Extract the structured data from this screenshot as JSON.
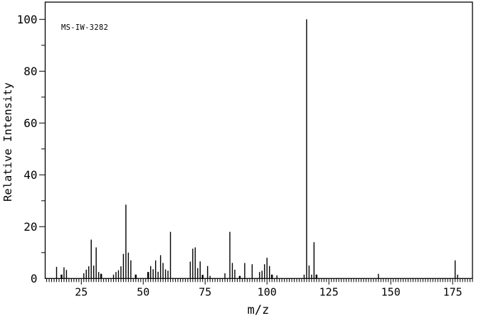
{
  "chart_data": {
    "type": "bar",
    "subtype": "mass-spectrum",
    "annotation": "MS-IW-3282",
    "xlabel": "m/z",
    "ylabel": "Relative Intensity",
    "xlim": [
      10.4,
      183
    ],
    "ylim": [
      0,
      100
    ],
    "x_major_ticks": [
      25,
      50,
      75,
      100,
      125,
      150,
      175
    ],
    "x_minor_step": 1,
    "y_major_ticks": [
      0,
      20,
      40,
      60,
      80,
      100
    ],
    "y_minor_step": 10,
    "grid": false,
    "legend": "none",
    "colors": {
      "line": "#000000",
      "background": "#ffffff"
    },
    "peaks": [
      [
        15,
        4.5
      ],
      [
        17,
        1.5,
        2.5
      ],
      [
        18,
        4.3
      ],
      [
        19,
        3.3
      ],
      [
        26,
        2
      ],
      [
        27,
        3.4
      ],
      [
        28,
        4.7
      ],
      [
        29,
        15
      ],
      [
        30,
        5
      ],
      [
        31,
        12
      ],
      [
        32,
        2.5
      ],
      [
        33,
        1.8,
        2.5
      ],
      [
        38,
        1.5
      ],
      [
        39,
        2.5
      ],
      [
        40,
        3.2
      ],
      [
        41,
        4.7
      ],
      [
        42,
        9.5
      ],
      [
        43,
        28.5
      ],
      [
        44,
        10
      ],
      [
        45,
        7
      ],
      [
        47,
        1.5,
        2.5
      ],
      [
        52,
        2.5,
        2.5
      ],
      [
        53,
        4.8
      ],
      [
        54,
        3.6
      ],
      [
        55,
        7
      ],
      [
        56,
        2.6
      ],
      [
        57,
        9
      ],
      [
        58,
        6
      ],
      [
        59,
        3.5
      ],
      [
        60,
        3
      ],
      [
        61,
        18
      ],
      [
        69,
        6.5
      ],
      [
        70,
        11.5
      ],
      [
        71,
        12
      ],
      [
        72,
        4
      ],
      [
        73,
        6.6
      ],
      [
        74,
        1.4,
        2.5
      ],
      [
        76,
        4.8
      ],
      [
        77,
        1
      ],
      [
        83,
        2
      ],
      [
        85,
        18
      ],
      [
        86,
        6
      ],
      [
        87,
        3.4
      ],
      [
        89,
        1,
        2.5
      ],
      [
        91,
        6
      ],
      [
        94,
        5.5
      ],
      [
        97,
        2.5
      ],
      [
        98,
        3
      ],
      [
        99,
        5.5
      ],
      [
        100,
        8
      ],
      [
        101,
        4.8
      ],
      [
        102,
        1.5,
        2.5
      ],
      [
        104,
        1.2
      ],
      [
        115,
        1.5
      ],
      [
        116,
        100
      ],
      [
        117,
        5
      ],
      [
        118,
        1.5
      ],
      [
        119,
        14
      ],
      [
        120,
        1.5,
        2.5
      ],
      [
        145,
        1.8
      ],
      [
        176,
        7
      ],
      [
        177,
        1.5
      ]
    ]
  }
}
